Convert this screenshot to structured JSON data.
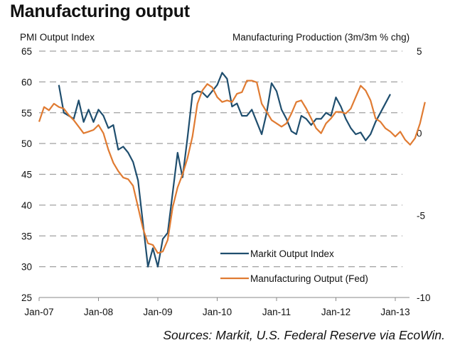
{
  "chart_data": {
    "type": "line",
    "title": "Manufacturing output",
    "ylabel_left": "PMI Output Index",
    "ylabel_right": "Manufacturing Production (3m/3m % chg)",
    "source": "Sources: Markit, U.S. Federal Reserve via EcoWin.",
    "ylim_left": [
      25,
      65
    ],
    "yticks_left": [
      "65",
      "60",
      "55",
      "50",
      "45",
      "40",
      "35",
      "30",
      "25"
    ],
    "ylim_right": [
      -10,
      5
    ],
    "yticks_right": [
      "5",
      "0",
      "-5",
      "-10"
    ],
    "xticks": [
      "Jan-07",
      "Jan-08",
      "Jan-09",
      "Jan-10",
      "Jan-11",
      "Jan-12",
      "Jan-13"
    ],
    "grid": "horizontal-dashed",
    "legend": "bottom-center",
    "colors": {
      "markit": "#1f4e6e",
      "fed": "#e07b32",
      "grid": "#a0a0a0"
    },
    "series": [
      {
        "name": "Markit Output Index",
        "axis": "left",
        "start": "2007-05",
        "values": [
          59.5,
          55.0,
          54.5,
          54.0,
          57.0,
          53.5,
          55.5,
          53.5,
          55.5,
          54.5,
          52.5,
          53.0,
          49.0,
          49.5,
          48.5,
          47.0,
          44.0,
          37.0,
          30.0,
          33.0,
          30.0,
          34.5,
          35.5,
          42.0,
          48.5,
          44.5,
          51.0,
          58.0,
          58.5,
          58.3,
          57.5,
          58.5,
          59.5,
          61.5,
          60.5,
          56.0,
          56.5,
          54.5,
          54.5,
          55.5,
          53.5,
          51.5,
          55.0,
          59.8,
          58.5,
          55.5,
          54.0,
          52.0,
          51.5,
          54.5,
          54.0,
          53.0,
          54.0,
          54.0,
          55.0,
          54.5,
          57.5,
          56.0,
          54.0,
          52.5,
          51.5,
          51.8,
          50.5,
          51.5,
          53.5,
          55.0,
          56.5,
          58.0
        ]
      },
      {
        "name": "Manufacturing Output (Fed)",
        "axis": "right",
        "start": "2007-01",
        "values": [
          0.7,
          1.6,
          1.4,
          1.8,
          1.6,
          1.5,
          1.1,
          0.8,
          0.4,
          0.0,
          0.1,
          0.2,
          0.5,
          0.0,
          -1.0,
          -1.8,
          -2.3,
          -2.7,
          -2.8,
          -3.2,
          -4.5,
          -5.8,
          -6.7,
          -6.8,
          -7.3,
          -7.2,
          -6.5,
          -4.5,
          -3.3,
          -2.5,
          -1.5,
          -0.2,
          1.8,
          2.6,
          3.0,
          2.8,
          2.2,
          1.9,
          2.0,
          1.9,
          2.4,
          2.5,
          3.2,
          3.2,
          3.1,
          1.8,
          1.3,
          0.8,
          0.6,
          0.4,
          0.6,
          1.2,
          1.9,
          2.0,
          1.5,
          0.9,
          0.3,
          0.0,
          0.6,
          0.9,
          1.3,
          1.3,
          1.2,
          1.5,
          2.2,
          2.9,
          2.6,
          2.0,
          0.9,
          0.7,
          0.3,
          0.1,
          -0.2,
          0.1,
          -0.4,
          -0.7,
          -0.3,
          0.6,
          1.9
        ]
      }
    ]
  }
}
